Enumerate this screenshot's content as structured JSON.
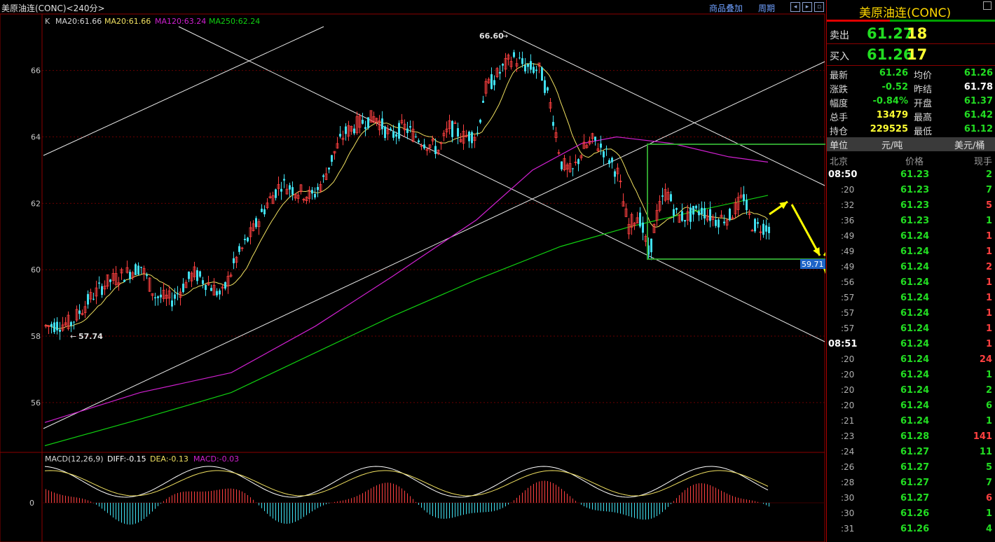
{
  "header": {
    "title": "美原油连(CONC)<240分>",
    "links": [
      "商品叠加",
      "周期"
    ],
    "nav_buttons": [
      "left-arrow",
      "right-arrow",
      "expand"
    ]
  },
  "ma_legend": {
    "k": "K",
    "ma20a": "MA20:61.66",
    "ma20b": "MA20:61.66",
    "ma120": "MA120:63.24",
    "ma250": "MA250:62.24"
  },
  "price_annotations": {
    "high": "66.60",
    "low": "57.74",
    "price_tag": "59.71"
  },
  "macd_legend": {
    "name": "MACD(12,26,9)",
    "diff": "DIFF:-0.15",
    "dea": "DEA:-0.13",
    "macd": "MACD:-0.03",
    "zero": "0"
  },
  "colors": {
    "ma20": "#f0e060",
    "ma120": "#d020d0",
    "ma250": "#10d010",
    "up": "#ff4040",
    "down": "#40e0f0",
    "box": "#2f9e2f",
    "arrows": "#ffff00",
    "lines": "#e8e8e8"
  },
  "chart_data": {
    "type": "candlestick",
    "ylim": [
      54.5,
      67.7
    ],
    "y_ticks": [
      56,
      58,
      60,
      62,
      64,
      66
    ],
    "high_marker": 66.6,
    "low_marker": 57.74,
    "ma20_last": 61.66,
    "ma120_last": 63.24,
    "ma250_last": 62.24,
    "macd": {
      "diff": -0.15,
      "dea": -0.13,
      "macd": -0.03
    }
  },
  "panel": {
    "title": "美原油连(CONC)",
    "ask": {
      "label": "卖出",
      "price": "61.27",
      "vol": "18"
    },
    "bid": {
      "label": "买入",
      "price": "61.26",
      "vol": "17"
    },
    "stats": [
      {
        "k1": "最新",
        "v1": "61.26",
        "c1": "#22dd22",
        "k2": "均价",
        "v2": "61.26",
        "c2": "#22dd22"
      },
      {
        "k1": "涨跌",
        "v1": "-0.52",
        "c1": "#22dd22",
        "k2": "昨结",
        "v2": "61.78",
        "c2": "#ffffff"
      },
      {
        "k1": "幅度",
        "v1": "-0.84%",
        "c1": "#22dd22",
        "k2": "开盘",
        "v2": "61.37",
        "c2": "#22dd22"
      },
      {
        "k1": "总手",
        "v1": "13479",
        "c1": "#ffff33",
        "k2": "最高",
        "v2": "61.42",
        "c2": "#22dd22"
      },
      {
        "k1": "持仓",
        "v1": "229525",
        "c1": "#ffff33",
        "k2": "最低",
        "v2": "61.12",
        "c2": "#22dd22"
      }
    ],
    "unit_label": "单位",
    "unit_cn": "元/吨",
    "unit_us": "美元/桶",
    "table_headers": [
      "北京",
      "价格",
      "现手"
    ],
    "ticks": [
      {
        "t": "08:50",
        "p": "61.23",
        "v": "2",
        "c": "#22dd22"
      },
      {
        "t": ":20",
        "p": "61.23",
        "v": "7",
        "c": "#22dd22"
      },
      {
        "t": ":32",
        "p": "61.23",
        "v": "5",
        "c": "#ff4040"
      },
      {
        "t": ":36",
        "p": "61.23",
        "v": "1",
        "c": "#22dd22"
      },
      {
        "t": ":49",
        "p": "61.24",
        "v": "1",
        "c": "#ff4040"
      },
      {
        "t": ":49",
        "p": "61.24",
        "v": "1",
        "c": "#ff4040"
      },
      {
        "t": ":49",
        "p": "61.24",
        "v": "2",
        "c": "#ff4040"
      },
      {
        "t": ":56",
        "p": "61.24",
        "v": "1",
        "c": "#ff4040"
      },
      {
        "t": ":57",
        "p": "61.24",
        "v": "1",
        "c": "#ff4040"
      },
      {
        "t": ":57",
        "p": "61.24",
        "v": "1",
        "c": "#ff4040"
      },
      {
        "t": ":57",
        "p": "61.24",
        "v": "1",
        "c": "#ff4040"
      },
      {
        "t": "08:51",
        "p": "61.24",
        "v": "1",
        "c": "#ff4040"
      },
      {
        "t": ":20",
        "p": "61.24",
        "v": "24",
        "c": "#ff4040"
      },
      {
        "t": ":20",
        "p": "61.24",
        "v": "1",
        "c": "#22dd22"
      },
      {
        "t": ":20",
        "p": "61.24",
        "v": "2",
        "c": "#22dd22"
      },
      {
        "t": ":20",
        "p": "61.24",
        "v": "6",
        "c": "#22dd22"
      },
      {
        "t": ":21",
        "p": "61.24",
        "v": "1",
        "c": "#22dd22"
      },
      {
        "t": ":23",
        "p": "61.28",
        "v": "141",
        "c": "#ff4040"
      },
      {
        "t": ":24",
        "p": "61.27",
        "v": "11",
        "c": "#22dd22"
      },
      {
        "t": ":26",
        "p": "61.27",
        "v": "5",
        "c": "#22dd22"
      },
      {
        "t": ":28",
        "p": "61.27",
        "v": "7",
        "c": "#22dd22"
      },
      {
        "t": ":30",
        "p": "61.27",
        "v": "6",
        "c": "#ff4040"
      },
      {
        "t": ":30",
        "p": "61.26",
        "v": "1",
        "c": "#22dd22"
      },
      {
        "t": ":31",
        "p": "61.26",
        "v": "4",
        "c": "#22dd22"
      }
    ]
  }
}
